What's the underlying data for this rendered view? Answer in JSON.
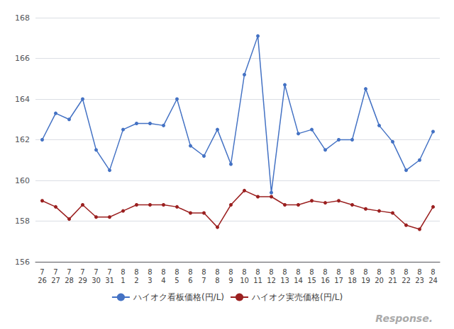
{
  "chart_data": {
    "type": "line",
    "categories": [
      "7\n26",
      "7\n27",
      "7\n28",
      "7\n29",
      "7\n30",
      "7\n31",
      "8\n1",
      "8\n2",
      "8\n3",
      "8\n4",
      "8\n5",
      "8\n6",
      "8\n7",
      "8\n8",
      "8\n9",
      "8\n10",
      "8\n11",
      "8\n12",
      "8\n13",
      "8\n14",
      "8\n15",
      "8\n16",
      "8\n17",
      "8\n18",
      "8\n19",
      "8\n20",
      "8\n21",
      "8\n22",
      "8\n23",
      "8\n24"
    ],
    "series": [
      {
        "name": "ハイオク看板価格(円/L)",
        "color": "#4472c4",
        "marker": "circle",
        "values": [
          162.0,
          163.3,
          163.0,
          164.0,
          161.5,
          160.5,
          162.5,
          162.8,
          162.8,
          162.7,
          164.0,
          161.7,
          161.2,
          162.5,
          160.8,
          165.2,
          167.1,
          159.4,
          164.7,
          162.3,
          162.5,
          161.5,
          162.0,
          162.0,
          164.5,
          162.7,
          161.9,
          160.5,
          161.0,
          162.4
        ]
      },
      {
        "name": "ハイオク実売価格(円/L)",
        "color": "#9b2020",
        "marker": "circle",
        "values": [
          159.0,
          158.7,
          158.1,
          158.8,
          158.2,
          158.2,
          158.5,
          158.8,
          158.8,
          158.8,
          158.7,
          158.4,
          158.4,
          157.7,
          158.8,
          159.5,
          159.2,
          159.2,
          158.8,
          158.8,
          159.0,
          158.9,
          159.0,
          158.8,
          158.6,
          158.5,
          158.4,
          157.8,
          157.6,
          158.7
        ]
      }
    ],
    "ylim": [
      156,
      168
    ],
    "yticks": [
      156,
      158,
      160,
      162,
      164,
      166,
      168
    ],
    "grid": true,
    "legend": "bottom",
    "annotations": [
      "Response."
    ]
  }
}
